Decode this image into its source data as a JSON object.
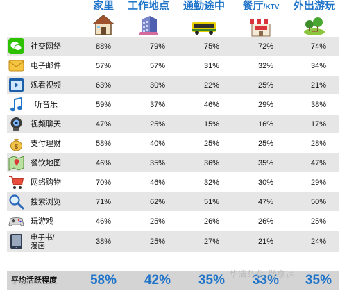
{
  "chart_data": {
    "type": "table",
    "columns": [
      {
        "title": "家里",
        "icon": "house-icon"
      },
      {
        "title": "工作地点",
        "icon": "office-building-icon"
      },
      {
        "title": "通勤途中",
        "icon": "bus-icon"
      },
      {
        "title": "餐厅/KTV",
        "title_main": "餐厅",
        "title_small": "/KTV",
        "icon": "restaurant-icon"
      },
      {
        "title": "外出游玩",
        "icon": "park-icon"
      }
    ],
    "rows": [
      {
        "label": "社交网络",
        "icon": "wechat-icon",
        "values": [
          "88%",
          "79%",
          "75%",
          "72%",
          "74%"
        ]
      },
      {
        "label": "电子邮件",
        "icon": "email-icon",
        "values": [
          "57%",
          "57%",
          "31%",
          "32%",
          "34%"
        ]
      },
      {
        "label": "观看视频",
        "icon": "video-player-icon",
        "values": [
          "63%",
          "30%",
          "22%",
          "25%",
          "21%"
        ]
      },
      {
        "label": "听音乐",
        "icon": "music-note-icon",
        "values": [
          "59%",
          "37%",
          "46%",
          "29%",
          "38%"
        ]
      },
      {
        "label": "视频聊天",
        "icon": "webcam-icon",
        "values": [
          "47%",
          "25%",
          "15%",
          "16%",
          "17%"
        ]
      },
      {
        "label": "支付理财",
        "icon": "money-bag-icon",
        "values": [
          "58%",
          "40%",
          "25%",
          "25%",
          "28%"
        ]
      },
      {
        "label": "餐饮地图",
        "icon": "map-icon",
        "values": [
          "46%",
          "35%",
          "36%",
          "35%",
          "47%"
        ]
      },
      {
        "label": "网络购物",
        "icon": "shopping-cart-icon",
        "values": [
          "70%",
          "46%",
          "32%",
          "30%",
          "29%"
        ]
      },
      {
        "label": "搜索浏览",
        "icon": "magnifier-icon",
        "values": [
          "71%",
          "62%",
          "51%",
          "47%",
          "50%"
        ]
      },
      {
        "label": "玩游戏",
        "icon": "gamepad-icon",
        "values": [
          "46%",
          "25%",
          "26%",
          "26%",
          "25%"
        ]
      },
      {
        "label": "电子书/漫画",
        "label_lines": [
          "电子书/",
          "漫画"
        ],
        "icon": "ebook-icon",
        "values": [
          "38%",
          "25%",
          "27%",
          "21%",
          "24%"
        ]
      }
    ],
    "summary_row": {
      "label": "平均活跃程度",
      "values": [
        "58%",
        "42%",
        "35%",
        "33%",
        "35%"
      ]
    }
  },
  "watermark": {
    "text": "华清软件 微享达",
    "corner_text": "© 微软中国"
  },
  "colors": {
    "accent_blue": "#1f74c9",
    "alt_row": "#e6e6e6",
    "summary_row": "#d4d4d4"
  }
}
